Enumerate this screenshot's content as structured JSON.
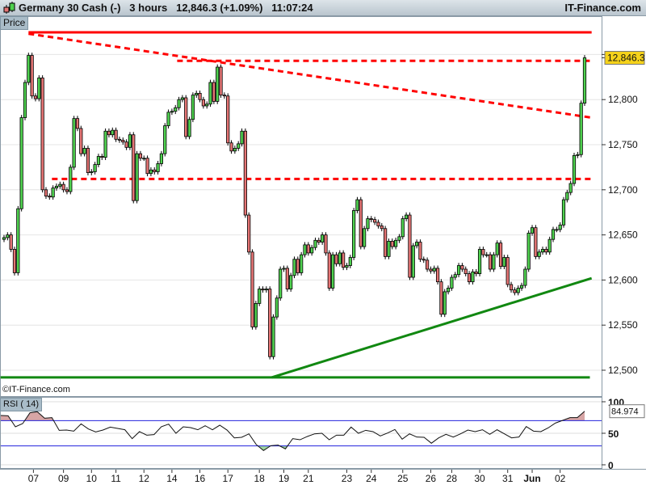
{
  "header": {
    "instrument": "Germany 30 Cash (-)",
    "timeframe": "3 hours",
    "last_price": "12,846.3",
    "change": "(+1.09%)",
    "time": "11:07:24",
    "brand": "IT-Finance.com"
  },
  "price_panel_label": "Price",
  "copyright": "©IT-Finance.com",
  "rsi_panel_label": "RSI ( 14)",
  "colors": {
    "up": "#4fd14f",
    "down": "#e47474",
    "resistance": "#ff0000",
    "support": "#118811",
    "rsi_band": "#2222dd",
    "price_tag": "#f5d21a"
  },
  "chart_data": [
    {
      "type": "candlestick",
      "title": "",
      "ylim": [
        12480,
        12890
      ],
      "y_ticks": [
        "12,500",
        "12,550",
        "12,600",
        "12,650",
        "12,700",
        "12,750",
        "12,800"
      ],
      "y_tick_values": [
        12500,
        12550,
        12600,
        12650,
        12700,
        12750,
        12800,
        12850
      ],
      "grid": true,
      "first_open": 12645,
      "closes": [
        12647,
        12650,
        12634,
        12608,
        12679,
        12780,
        12819,
        12849,
        12804,
        12801,
        12824,
        12700,
        12693,
        12692,
        12702,
        12704,
        12706,
        12700,
        12698,
        12725,
        12779,
        12768,
        12740,
        12746,
        12719,
        12720,
        12728,
        12737,
        12736,
        12765,
        12761,
        12766,
        12756,
        12755,
        12753,
        12747,
        12761,
        12688,
        12740,
        12735,
        12735,
        12718,
        12722,
        12720,
        12729,
        12740,
        12771,
        12786,
        12787,
        12791,
        12800,
        12802,
        12759,
        12778,
        12805,
        12807,
        12800,
        12793,
        12795,
        12819,
        12798,
        12836,
        12805,
        12804,
        12752,
        12743,
        12746,
        12751,
        12765,
        12672,
        12631,
        12548,
        12574,
        12590,
        12589,
        12590,
        12515,
        12559,
        12580,
        12612,
        12613,
        12590,
        12605,
        12623,
        12608,
        12628,
        12639,
        12630,
        12636,
        12644,
        12642,
        12650,
        12630,
        12591,
        12628,
        12618,
        12630,
        12614,
        12616,
        12625,
        12677,
        12689,
        12637,
        12657,
        12668,
        12667,
        12664,
        12660,
        12657,
        12626,
        12643,
        12637,
        12644,
        12648,
        12668,
        12672,
        12603,
        12638,
        12642,
        12623,
        12622,
        12612,
        12610,
        12613,
        12598,
        12562,
        12587,
        12591,
        12603,
        12606,
        12616,
        12612,
        12607,
        12598,
        12609,
        12607,
        12634,
        12628,
        12628,
        12612,
        12628,
        12641,
        12615,
        12625,
        12595,
        12589,
        12586,
        12591,
        12594,
        12612,
        12652,
        12658,
        12626,
        12631,
        12634,
        12631,
        12645,
        12656,
        12656,
        12661,
        12689,
        12697,
        12707,
        12738,
        12739,
        12796,
        12846.3
      ],
      "last_price_label": "12,846.3",
      "lines": [
        {
          "kind": "solid",
          "color": "resistance",
          "from": [
            7,
            12874.5
          ],
          "to": [
            168,
            12874.5
          ]
        },
        {
          "kind": "dashed",
          "color": "resistance",
          "from": [
            7,
            12873
          ],
          "to": [
            168,
            12780
          ]
        },
        {
          "kind": "dashed",
          "color": "resistance",
          "from": [
            49.5,
            12843
          ],
          "to": [
            168,
            12843
          ]
        },
        {
          "kind": "dashed",
          "color": "resistance",
          "from": [
            13.7,
            12712
          ],
          "to": [
            168,
            12712
          ]
        },
        {
          "kind": "solid",
          "color": "support",
          "from": [
            -1,
            12492
          ],
          "to": [
            167.5,
            12492
          ]
        },
        {
          "kind": "solid",
          "color": "support",
          "from": [
            76.5,
            12492
          ],
          "to": [
            168,
            12602
          ]
        }
      ]
    },
    {
      "type": "line",
      "title": "RSI ( 14)",
      "ylim": [
        0,
        100
      ],
      "y_ticks": [
        "100",
        "50",
        "0"
      ],
      "bands": [
        30,
        70
      ],
      "last_value_label": "84.974",
      "values": [
        78.2,
        77.8,
        60.3,
        65.4,
        82.5,
        84.2,
        73.9,
        74.8,
        54.7,
        55.1,
        53.4,
        64.9,
        56.8,
        52.1,
        55.1,
        59.8,
        57.7,
        55.6,
        41.5,
        52.6,
        47,
        47.9,
        60.3,
        64.5,
        50,
        60.3,
        59,
        55.6,
        62,
        55.6,
        62.8,
        55.1,
        42.7,
        43.6,
        49.1,
        32.1,
        22.6,
        30.3,
        31.2,
        25.2,
        41.5,
        39.7,
        44.9,
        49.1,
        50,
        39.7,
        47,
        47,
        59.8,
        50,
        54.7,
        52.6,
        45.7,
        50.4,
        56,
        40.6,
        49.1,
        44,
        43.6,
        34.2,
        42.7,
        48.3,
        44,
        49.1,
        55.1,
        52.6,
        55.6,
        48.3,
        55.6,
        49.1,
        42.7,
        44,
        60.7,
        53.4,
        52.6,
        58.5,
        66.2,
        70.5,
        74.8,
        74.8,
        84.974
      ]
    }
  ],
  "x_axis": {
    "labels": [
      "07",
      "09",
      "10",
      "11",
      "12",
      "14",
      "16",
      "17",
      "18",
      "19",
      "21",
      "23",
      "24",
      "25",
      "26",
      "28",
      "30",
      "31",
      "Jun",
      "02"
    ],
    "label_index": [
      8.4,
      17,
      25,
      32,
      40,
      48,
      56,
      64,
      73,
      80,
      87,
      98,
      105,
      114,
      122,
      128,
      136,
      144,
      151,
      159
    ]
  }
}
